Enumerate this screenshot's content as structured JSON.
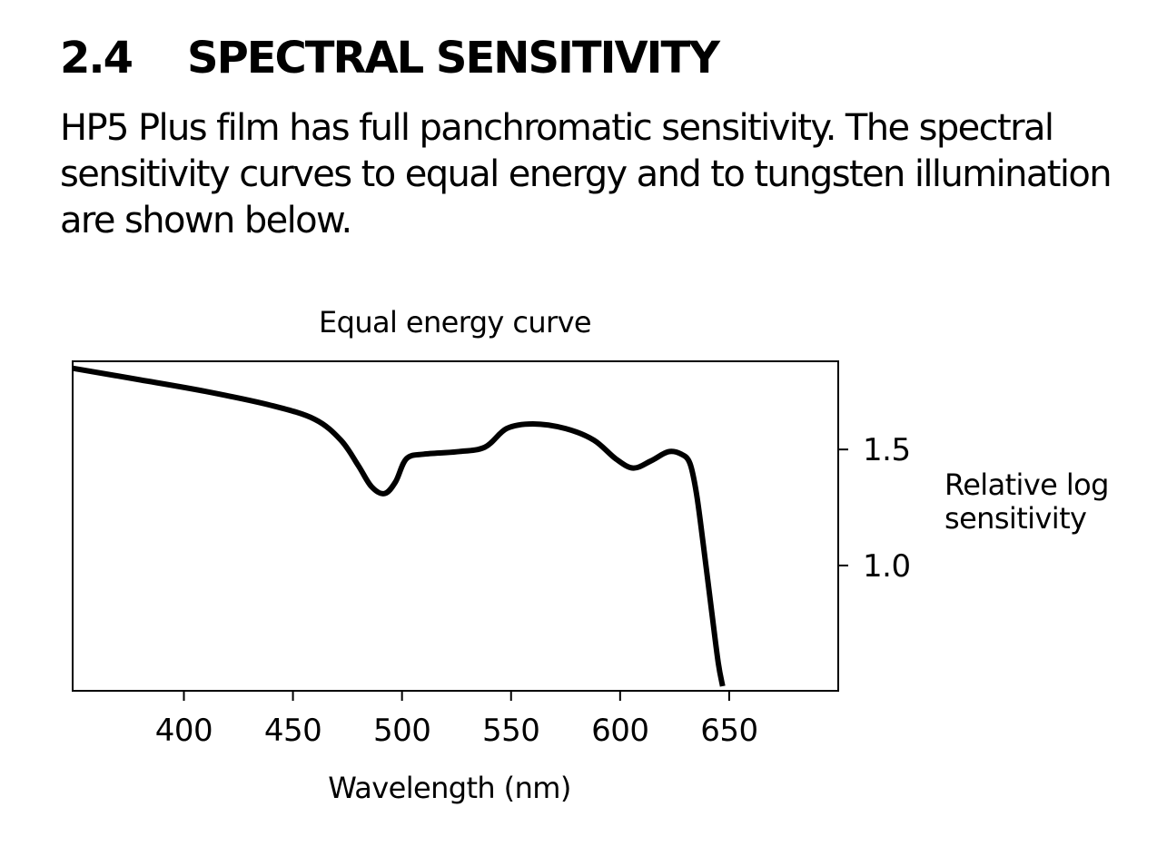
{
  "section": {
    "number": "2.4",
    "title": "SPECTRAL SENSITIVITY"
  },
  "intro_text": "HP5 Plus film has full panchromatic sensitivity. The spectral sensitivity curves to equal energy and to tungsten illumination are shown below.",
  "chart_data": {
    "type": "line",
    "title": "Equal energy curve",
    "xlabel": "Wavelength (nm)",
    "ylabel": "Relative log sensitivity",
    "xlim": [
      349,
      700
    ],
    "ylim": [
      0.46,
      1.88
    ],
    "x_ticks": [
      400,
      450,
      500,
      550,
      600,
      650
    ],
    "y_ticks": [
      1.0,
      1.5
    ],
    "y_tick_labels": [
      "1.0",
      "1.5"
    ],
    "y_axis_side": "right",
    "grid": false,
    "series": [
      {
        "color": "#000000",
        "points": [
          [
            349,
            1.85
          ],
          [
            380,
            1.8
          ],
          [
            410,
            1.75
          ],
          [
            440,
            1.69
          ],
          [
            460,
            1.63
          ],
          [
            472,
            1.54
          ],
          [
            480,
            1.43
          ],
          [
            486,
            1.34
          ],
          [
            492,
            1.31
          ],
          [
            497,
            1.36
          ],
          [
            502,
            1.46
          ],
          [
            510,
            1.48
          ],
          [
            525,
            1.49
          ],
          [
            538,
            1.51
          ],
          [
            548,
            1.59
          ],
          [
            560,
            1.61
          ],
          [
            575,
            1.59
          ],
          [
            588,
            1.54
          ],
          [
            598,
            1.46
          ],
          [
            606,
            1.42
          ],
          [
            614,
            1.45
          ],
          [
            622,
            1.49
          ],
          [
            628,
            1.48
          ],
          [
            632,
            1.44
          ],
          [
            635,
            1.31
          ],
          [
            638,
            1.1
          ],
          [
            642,
            0.8
          ],
          [
            645,
            0.58
          ],
          [
            647,
            0.48
          ]
        ]
      }
    ]
  }
}
